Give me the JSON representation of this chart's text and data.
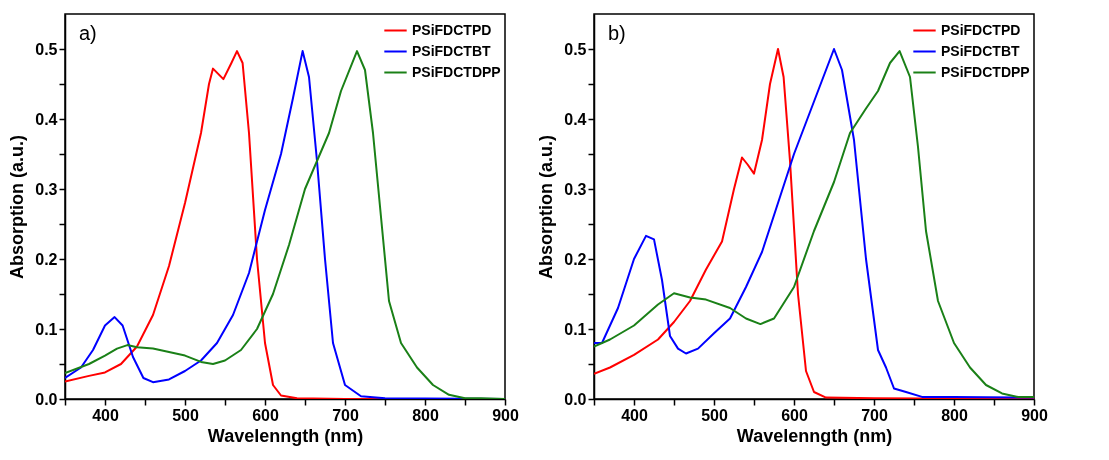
{
  "chart_data": [
    {
      "type": "line",
      "xlabel": "Wavelenngth (nm)",
      "ylabel": "Absorption (a.u.)",
      "annotations": [
        "a)"
      ],
      "legend": "top right",
      "grid": false,
      "marker": "none",
      "line_style": "solid",
      "xlim": [
        350,
        900
      ],
      "ylim": [
        0,
        0.55
      ],
      "xticks": [
        {
          "value": 350,
          "label": null
        },
        400,
        {
          "value": 450,
          "label": null
        },
        500,
        {
          "value": 550,
          "label": null
        },
        600,
        {
          "value": 650,
          "label": null
        },
        700,
        {
          "value": 750,
          "label": null
        },
        800,
        {
          "value": 850,
          "label": null
        },
        900
      ],
      "yticks": [
        {
          "value": 0,
          "label": "0.0"
        },
        {
          "value": 0.05,
          "label": null
        },
        0.1,
        {
          "value": 0.15,
          "label": null
        },
        0.2,
        {
          "value": 0.25,
          "label": null
        },
        0.3,
        {
          "value": 0.35,
          "label": null
        },
        0.4,
        {
          "value": 0.45,
          "label": null
        },
        0.5
      ],
      "series": [
        {
          "name": "PSiFDCTPD",
          "color": "#ff0000",
          "x": [
            350,
            380,
            400,
            420,
            440,
            460,
            480,
            500,
            520,
            530,
            535,
            548,
            558,
            565,
            572,
            580,
            590,
            600,
            610,
            620,
            640,
            700,
            900
          ],
          "values": [
            0.025,
            0.033,
            0.038,
            0.05,
            0.075,
            0.12,
            0.19,
            0.28,
            0.38,
            0.45,
            0.472,
            0.457,
            0.48,
            0.497,
            0.48,
            0.38,
            0.2,
            0.08,
            0.02,
            0.005,
            0.001,
            0,
            0
          ]
        },
        {
          "name": "PSiFDCTBT",
          "color": "#0000ff",
          "x": [
            350,
            370,
            385,
            400,
            412,
            422,
            435,
            448,
            460,
            480,
            500,
            520,
            540,
            560,
            580,
            600,
            620,
            635,
            647,
            655,
            665,
            675,
            685,
            700,
            720,
            750,
            900
          ],
          "values": [
            0.03,
            0.045,
            0.07,
            0.105,
            0.117,
            0.105,
            0.06,
            0.03,
            0.024,
            0.028,
            0.04,
            0.055,
            0.08,
            0.12,
            0.18,
            0.27,
            0.35,
            0.43,
            0.497,
            0.46,
            0.34,
            0.2,
            0.08,
            0.02,
            0.004,
            0.001,
            0
          ]
        },
        {
          "name": "PSiFDCTDPP",
          "color": "#1a8017",
          "x": [
            350,
            380,
            400,
            415,
            428,
            440,
            460,
            480,
            500,
            520,
            535,
            550,
            570,
            590,
            610,
            630,
            650,
            665,
            680,
            695,
            715,
            725,
            735,
            745,
            755,
            770,
            790,
            810,
            830,
            850,
            870,
            900
          ],
          "values": [
            0.037,
            0.05,
            0.062,
            0.072,
            0.077,
            0.074,
            0.072,
            0.067,
            0.062,
            0.053,
            0.05,
            0.055,
            0.07,
            0.1,
            0.15,
            0.22,
            0.3,
            0.34,
            0.38,
            0.44,
            0.497,
            0.47,
            0.38,
            0.26,
            0.14,
            0.08,
            0.045,
            0.02,
            0.006,
            0.001,
            0.001,
            0
          ]
        }
      ]
    },
    {
      "type": "line",
      "xlabel": "Wavelenngth (nm)",
      "ylabel": "Absorption (a.u.)",
      "annotations": [
        "b)"
      ],
      "legend": "top right",
      "grid": false,
      "marker": "none",
      "line_style": "solid",
      "xlim": [
        350,
        900
      ],
      "ylim": [
        0,
        0.55
      ],
      "xticks": [
        {
          "value": 350,
          "label": null
        },
        400,
        {
          "value": 450,
          "label": null
        },
        500,
        {
          "value": 550,
          "label": null
        },
        600,
        {
          "value": 650,
          "label": null
        },
        700,
        {
          "value": 750,
          "label": null
        },
        800,
        {
          "value": 850,
          "label": null
        },
        900
      ],
      "yticks": [
        {
          "value": 0,
          "label": "0.0"
        },
        {
          "value": 0.05,
          "label": null
        },
        0.1,
        {
          "value": 0.15,
          "label": null
        },
        0.2,
        {
          "value": 0.25,
          "label": null
        },
        0.3,
        {
          "value": 0.35,
          "label": null
        },
        0.4,
        {
          "value": 0.45,
          "label": null
        },
        0.5
      ],
      "series": [
        {
          "name": "PSiFDCTPD",
          "color": "#ff0000",
          "x": [
            350,
            370,
            400,
            430,
            450,
            470,
            490,
            510,
            525,
            535,
            542,
            550,
            560,
            570,
            580,
            587,
            595,
            605,
            615,
            625,
            640,
            700,
            900
          ],
          "values": [
            0.036,
            0.045,
            0.063,
            0.085,
            0.11,
            0.14,
            0.185,
            0.225,
            0.3,
            0.345,
            0.335,
            0.322,
            0.37,
            0.45,
            0.5,
            0.46,
            0.34,
            0.15,
            0.04,
            0.01,
            0.002,
            0.001,
            0
          ]
        },
        {
          "name": "PSiFDCTBT",
          "color": "#0000ff",
          "x": [
            350,
            360,
            380,
            400,
            415,
            425,
            435,
            445,
            455,
            465,
            480,
            500,
            520,
            540,
            560,
            580,
            600,
            620,
            635,
            650,
            660,
            675,
            690,
            705,
            715,
            725,
            740,
            760,
            800,
            900
          ],
          "values": [
            0.08,
            0.08,
            0.13,
            0.2,
            0.233,
            0.228,
            0.17,
            0.09,
            0.072,
            0.065,
            0.072,
            0.094,
            0.115,
            0.16,
            0.21,
            0.28,
            0.35,
            0.41,
            0.455,
            0.5,
            0.47,
            0.37,
            0.2,
            0.07,
            0.045,
            0.015,
            0.01,
            0.003,
            0.003,
            0.002
          ]
        },
        {
          "name": "PSiFDCTDPP",
          "color": "#1a8017",
          "x": [
            350,
            370,
            400,
            430,
            450,
            470,
            490,
            520,
            540,
            558,
            575,
            600,
            625,
            650,
            670,
            690,
            705,
            720,
            732,
            745,
            755,
            765,
            780,
            800,
            820,
            840,
            860,
            880,
            900
          ],
          "values": [
            0.075,
            0.085,
            0.105,
            0.135,
            0.151,
            0.145,
            0.142,
            0.13,
            0.115,
            0.107,
            0.115,
            0.16,
            0.24,
            0.31,
            0.38,
            0.415,
            0.44,
            0.48,
            0.497,
            0.46,
            0.36,
            0.24,
            0.14,
            0.08,
            0.045,
            0.02,
            0.008,
            0.003,
            0.003
          ]
        }
      ]
    }
  ]
}
